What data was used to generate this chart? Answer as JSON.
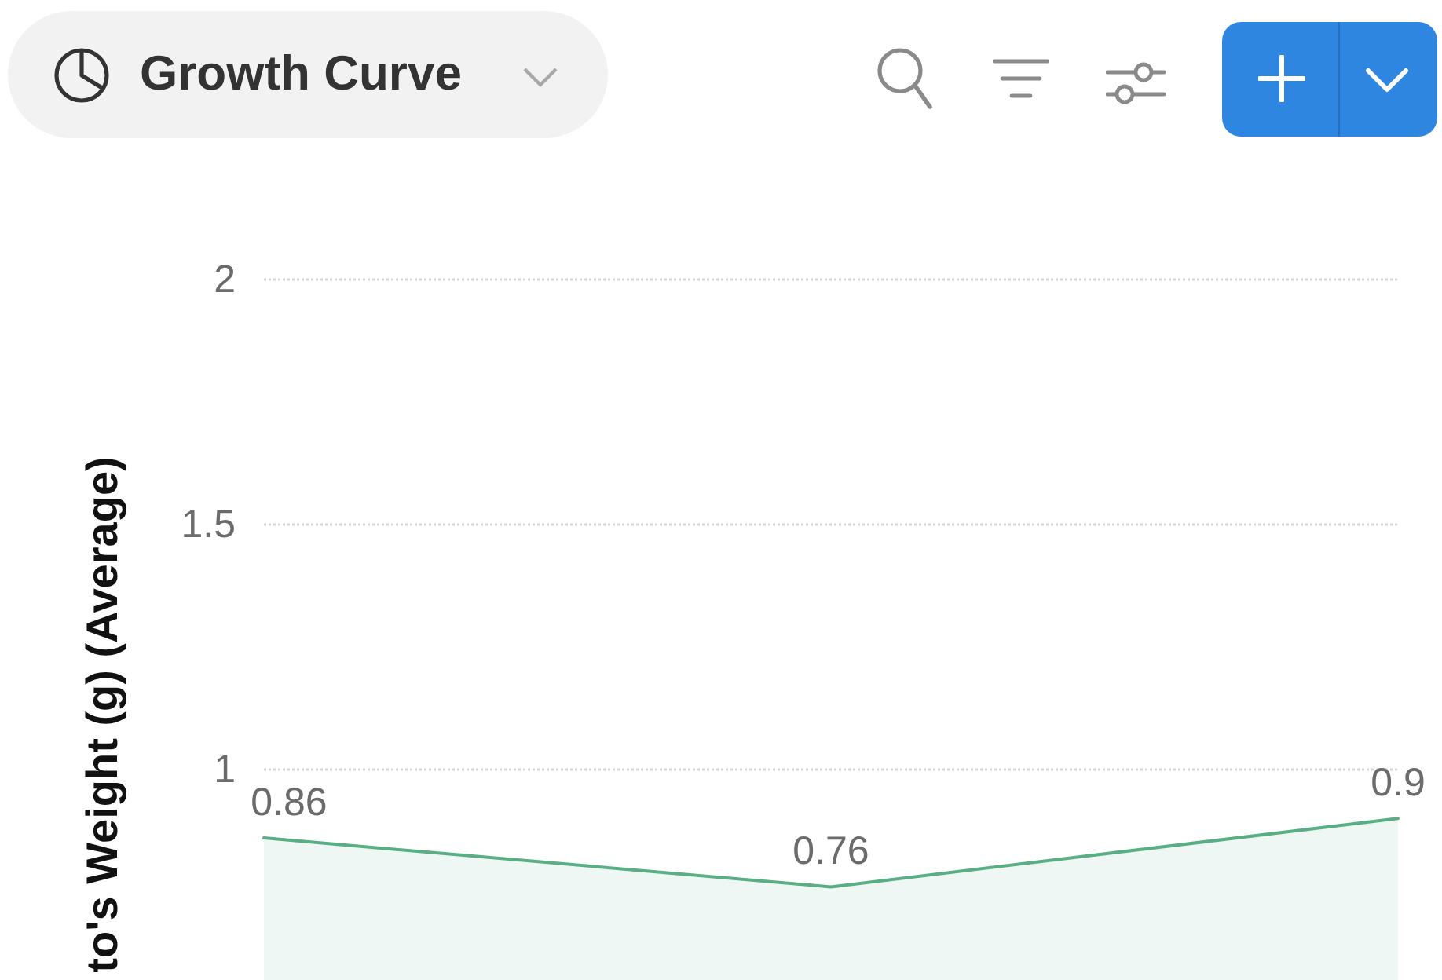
{
  "chart_data": {
    "type": "area",
    "title": "Growth Curve",
    "ylabel": "to's Weight (g) (Average)",
    "categories": [
      null,
      null,
      null
    ],
    "values": [
      0.86,
      0.76,
      0.9
    ],
    "color": "#5aae85",
    "ylim": [
      0.57,
      2
    ],
    "yticks": [
      1,
      1.5,
      2
    ],
    "grid": "y",
    "marker": "none",
    "data_labels": true,
    "tick_labels": "y"
  }
}
